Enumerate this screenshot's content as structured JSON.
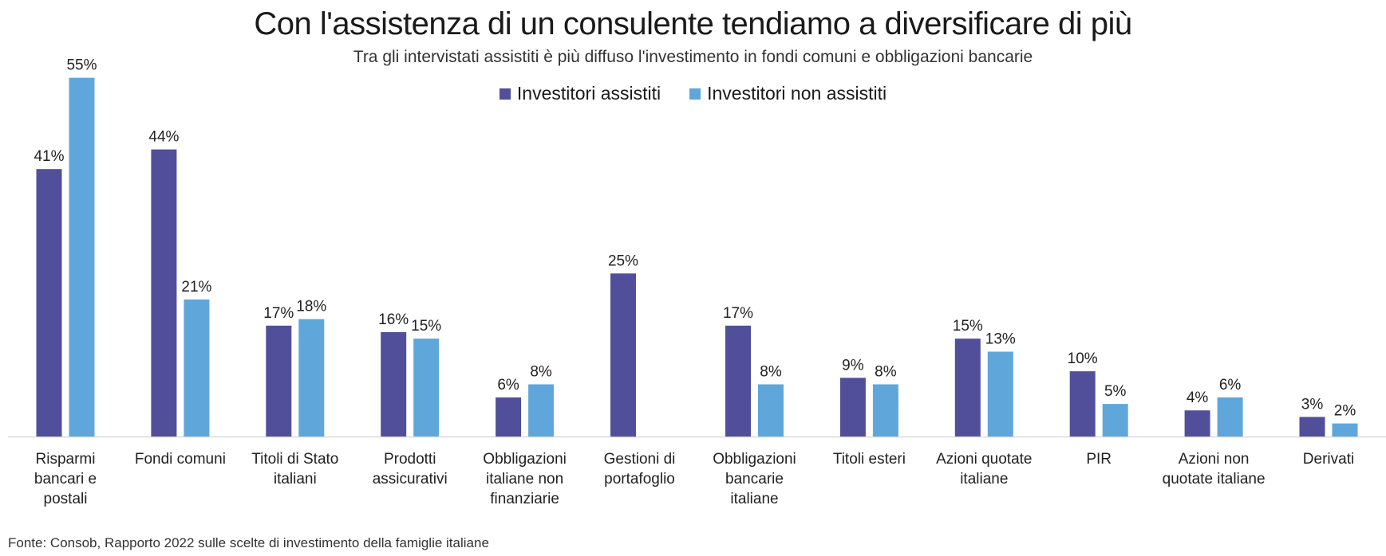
{
  "title": "Con l'assistenza di un consulente tendiamo a diversificare di più",
  "subtitle": "Tra gli intervistati assistiti è più diffuso l'investimento in fondi comuni e obbligazioni bancarie",
  "footer": "Fonte: Consob, Rapporto 2022 sulle scelte di investimento della famiglie italiane",
  "colors": {
    "assisted": "#524f9a",
    "non_assisted": "#5fa7db",
    "axis": "#d9d9d9"
  },
  "chart_data": {
    "type": "bar",
    "title": "Con l'assistenza di un consulente tendiamo a diversificare di più",
    "xlabel": "",
    "ylabel": "",
    "ylim": [
      0,
      55
    ],
    "legend_position": "top-center",
    "grid": false,
    "categories": [
      [
        "Risparmi",
        "bancari e",
        "postali"
      ],
      [
        "Fondi comuni"
      ],
      [
        "Titoli di Stato",
        "italiani"
      ],
      [
        "Prodotti",
        "assicurativi"
      ],
      [
        "Obbligazioni",
        "italiane non",
        "finanziarie"
      ],
      [
        "Gestioni di",
        "portafoglio"
      ],
      [
        "Obbligazioni",
        "bancarie",
        "italiane"
      ],
      [
        "Titoli esteri"
      ],
      [
        "Azioni quotate",
        "italiane"
      ],
      [
        "PIR"
      ],
      [
        "Azioni non",
        "quotate italiane"
      ],
      [
        "Derivati"
      ]
    ],
    "series": [
      {
        "name": "Investitori assistiti",
        "values": [
          41,
          44,
          17,
          16,
          6,
          25,
          17,
          9,
          15,
          10,
          4,
          3
        ],
        "labels": [
          "41%",
          "44%",
          "17%",
          "16%",
          "6%",
          "25%",
          "17%",
          "9%",
          "15%",
          "10%",
          "4%",
          "3%"
        ]
      },
      {
        "name": "Investitori non assistiti",
        "values": [
          55,
          21,
          18,
          15,
          8,
          null,
          8,
          8,
          13,
          5,
          6,
          2
        ],
        "labels": [
          "55%",
          "21%",
          "18%",
          "15%",
          "8%",
          null,
          "8%",
          "8%",
          "13%",
          "5%",
          "6%",
          "2%"
        ]
      }
    ]
  }
}
